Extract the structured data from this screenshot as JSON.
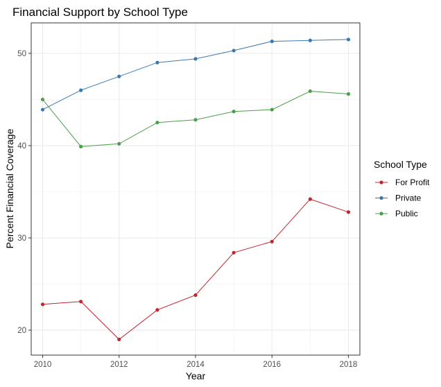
{
  "chart_data": {
    "type": "line",
    "title": "Financial Support by School Type",
    "xlabel": "Year",
    "ylabel": "Percent Financial Coverage",
    "x": [
      2010,
      2011,
      2012,
      2013,
      2014,
      2015,
      2016,
      2017,
      2018
    ],
    "xlim": [
      2009.7,
      2018.3
    ],
    "ylim": [
      17.3,
      53.3
    ],
    "x_ticks": [
      2010,
      2012,
      2014,
      2016,
      2018
    ],
    "y_ticks": [
      20,
      30,
      40,
      50
    ],
    "grid": true,
    "legend_title": "School Type",
    "legend_position": "right",
    "series": [
      {
        "name": "For Profit",
        "color": "#c0272d",
        "values": [
          22.8,
          23.1,
          19.0,
          22.2,
          23.8,
          28.4,
          29.6,
          34.2,
          32.8
        ]
      },
      {
        "name": "Private",
        "color": "#3a78b0",
        "values": [
          43.9,
          46.0,
          47.5,
          49.0,
          49.4,
          50.3,
          51.3,
          51.4,
          51.5
        ]
      },
      {
        "name": "Public",
        "color": "#4a9e48",
        "values": [
          45.0,
          39.9,
          40.2,
          42.5,
          42.8,
          43.7,
          43.9,
          45.9,
          45.6
        ]
      }
    ]
  }
}
